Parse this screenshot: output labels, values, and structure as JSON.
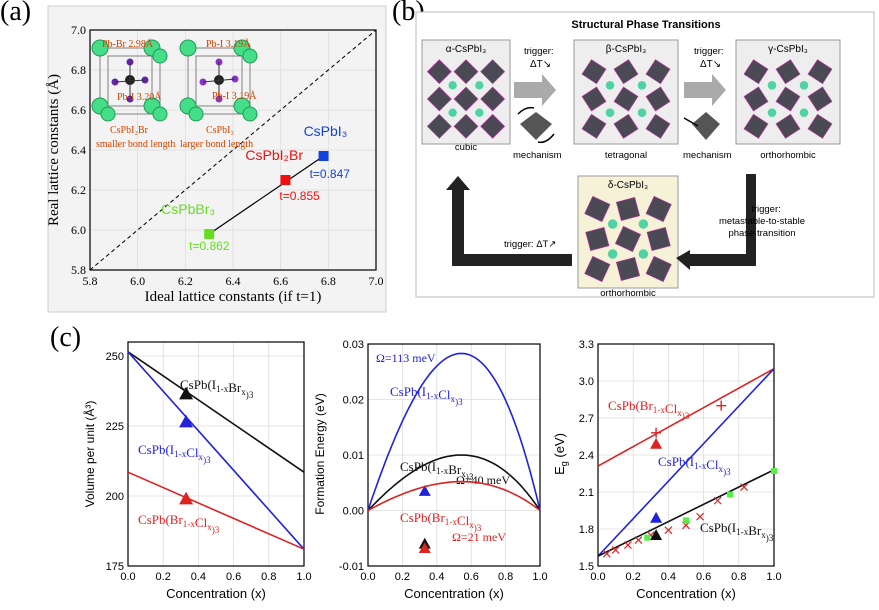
{
  "labels": {
    "a": "(a)",
    "b": "(b)",
    "c": "(c)"
  },
  "panel_a": {
    "xlabel": "Ideal lattice constants (if t=1)",
    "ylabel": "Real lattice constants (Å)",
    "xticks": [
      "5.8",
      "6.0",
      "6.2",
      "6.4",
      "6.6",
      "6.8",
      "7.0"
    ],
    "yticks": [
      "5.8",
      "6.0",
      "6.2",
      "6.4",
      "6.6",
      "6.8",
      "7.0"
    ],
    "inset_left": {
      "bond1": "Pb-Br 2.98Å",
      "bond2": "Pb-I 3.20Å",
      "formula": "CsPbI₂Br",
      "note": "smaller bond length"
    },
    "inset_right": {
      "bond1": "Pb-I 3.19Å",
      "bond2": "Pb-I 3.19Å",
      "formula": "CsPbI₃",
      "note": "larger bond length"
    }
  },
  "panel_b": {
    "title": "Structural Phase Transitions",
    "phases": [
      {
        "name": "α-CsPbI₃",
        "caption": "cubic"
      },
      {
        "name": "β-CsPbI₃",
        "caption": "tetragonal"
      },
      {
        "name": "γ-CsPbI₃",
        "caption": "orthorhombic"
      },
      {
        "name": "δ-CsPbI₃",
        "caption": "orthorhombic"
      }
    ],
    "trigger1": "trigger:",
    "trigger1b": "ΔT↘",
    "trigger2": "trigger:",
    "trigger2b": "ΔT↘",
    "mechanism1": "mechanism",
    "mechanism2": "mechanism",
    "trigger3a": "trigger:",
    "trigger3b": "metastable-to-stable",
    "trigger3c": "phase transition",
    "trigger4": "trigger: ΔT↗"
  },
  "chart_data": [
    {
      "type": "scatter",
      "xlabel": "Ideal lattice constants (if t=1)",
      "ylabel": "Real lattice constants (Å)",
      "xlim": [
        5.8,
        7.0
      ],
      "ylim": [
        5.8,
        7.0
      ],
      "series": [
        {
          "name": "CsPbBr₃",
          "x": [
            6.3
          ],
          "y": [
            5.98
          ],
          "color": "#66dd22",
          "annotation": "t=0.862"
        },
        {
          "name": "CsPbI₂Br",
          "x": [
            6.62
          ],
          "y": [
            6.25
          ],
          "color": "#ee1111",
          "annotation": "t=0.855"
        },
        {
          "name": "CsPbI₃",
          "x": [
            6.78
          ],
          "y": [
            6.37
          ],
          "color": "#1144dd",
          "annotation": "t=0.847"
        }
      ]
    },
    {
      "type": "line",
      "xlabel": "Concentration (x)",
      "ylabel": "Volume per unit (Å³)",
      "xlim": [
        0.0,
        1.0
      ],
      "ylim": [
        175,
        255
      ],
      "xticks": [
        "0.0",
        "0.2",
        "0.4",
        "0.6",
        "0.8",
        "1.0"
      ],
      "yticks": [
        "175",
        "200",
        "225",
        "250"
      ],
      "series": [
        {
          "name": "CsPb(I1-xBrx)3",
          "x": [
            0,
            1
          ],
          "y": [
            251.5,
            208.5
          ],
          "color": "#111111",
          "point": [
            0.33,
            236.5
          ]
        },
        {
          "name": "CsPb(I1-xClx)3",
          "x": [
            0,
            1
          ],
          "y": [
            251.5,
            181.0
          ],
          "color": "#2222dd",
          "point": [
            0.33,
            226.5
          ]
        },
        {
          "name": "CsPb(Br1-xClx)3",
          "x": [
            0,
            1
          ],
          "y": [
            208.5,
            181.0
          ],
          "color": "#dd2222",
          "point": [
            0.33,
            199.0
          ]
        }
      ]
    },
    {
      "type": "line",
      "xlabel": "Concentration (x)",
      "ylabel": "Formation Energy (eV)",
      "xlim": [
        0.0,
        1.0
      ],
      "ylim": [
        -0.01,
        0.03
      ],
      "xticks": [
        "0.0",
        "0.2",
        "0.4",
        "0.6",
        "0.8",
        "1.0"
      ],
      "yticks": [
        "-0.01",
        "0.00",
        "0.01",
        "0.02",
        "0.03"
      ],
      "series": [
        {
          "name": "CsPb(I1-xClx)3",
          "omega": "Ω=113 meV",
          "peak": [
            0.55,
            0.0283
          ],
          "color": "#2222dd",
          "point": [
            0.33,
            0.0035
          ]
        },
        {
          "name": "CsPb(I1-xBrx)3",
          "omega": "Ω=40 meV",
          "peak": [
            0.55,
            0.01
          ],
          "color": "#111111",
          "point": [
            0.33,
            -0.006
          ]
        },
        {
          "name": "CsPb(Br1-xClx)3",
          "omega": "Ω=21 meV",
          "peak": [
            0.55,
            0.0052
          ],
          "color": "#dd2222",
          "point": [
            0.33,
            -0.0068
          ]
        }
      ]
    },
    {
      "type": "line",
      "xlabel": "Concentration (x)",
      "ylabel": "Eg (eV)",
      "xlim": [
        0.0,
        1.0
      ],
      "ylim": [
        1.5,
        3.3
      ],
      "xticks": [
        "0.0",
        "0.2",
        "0.4",
        "0.6",
        "0.8",
        "1.0"
      ],
      "yticks": [
        "1.5",
        "1.8",
        "2.1",
        "2.4",
        "2.7",
        "3.0",
        "3.3"
      ],
      "series": [
        {
          "name": "CsPb(Br1-xClx)3",
          "x": [
            0,
            1
          ],
          "y": [
            2.31,
            3.1
          ],
          "color": "#dd2222",
          "point": [
            0.33,
            2.49
          ],
          "plus": [
            [
              0.33,
              2.58
            ],
            [
              0.7,
              2.8
            ]
          ]
        },
        {
          "name": "CsPb(I1-xClx)3",
          "x": [
            0,
            1
          ],
          "y": [
            1.58,
            3.1
          ],
          "color": "#2222dd",
          "point": [
            0.33,
            1.89
          ]
        },
        {
          "name": "CsPb(I1-xBrx)3",
          "x": [
            0,
            1
          ],
          "y": [
            1.58,
            2.28
          ],
          "color": "#111111",
          "point": [
            0.33,
            1.75
          ],
          "crosses": [
            [
              0.05,
              1.6
            ],
            [
              0.1,
              1.63
            ],
            [
              0.17,
              1.67
            ],
            [
              0.23,
              1.71
            ],
            [
              0.3,
              1.75
            ],
            [
              0.4,
              1.79
            ],
            [
              0.5,
              1.83
            ],
            [
              0.58,
              1.9
            ],
            [
              0.68,
              2.03
            ],
            [
              0.83,
              2.14
            ]
          ],
          "squares": [
            [
              0.28,
              1.73
            ],
            [
              0.5,
              1.87
            ],
            [
              0.75,
              2.08
            ],
            [
              1.0,
              2.27
            ]
          ]
        }
      ]
    }
  ]
}
